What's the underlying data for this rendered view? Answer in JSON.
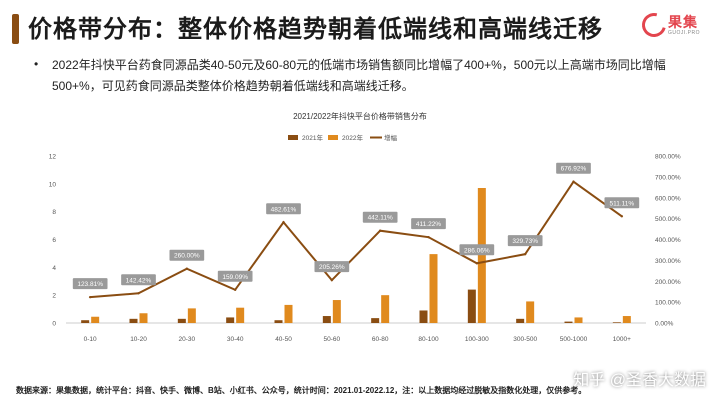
{
  "slide": {
    "title": "价格带分布：整体价格趋势朝着低端线和高端线迁移",
    "logo_text": "果集",
    "logo_sub": "GUOJI.PRO",
    "bullet_symbol": "•",
    "description": "2022年抖快平台药食同源品类40-50元及60-80元的低端市场销售额同比增幅了400+%，500元以上高端市场同比增幅500+%，可见药食同源品类整体价格趋势朝着低端线和高端线迁移。",
    "footer": "数据来源：果集数据，统计平台：抖音、快手、微博、B站、小红书、公众号，统计时间：2021.01-2022.12，注：以上数据均经过脱敏及指数化处理，仅供参考。",
    "watermark": "知乎 @圣香大数据"
  },
  "colors": {
    "title_accent": "#8a4d12",
    "series_2021": "#8a4d12",
    "series_2022": "#e08a1e",
    "growth_line": "#8a4d12",
    "label_box": "#9a9a9a"
  },
  "chart_data": {
    "type": "bar",
    "title": "2021/2022年抖快平台价格带销售分布",
    "categories": [
      "0-10",
      "10-20",
      "20-30",
      "30-40",
      "40-50",
      "50-60",
      "60-80",
      "80-100",
      "100-300",
      "300-500",
      "500-1000",
      "1000+"
    ],
    "series": [
      {
        "name": "2021年",
        "type": "bar",
        "axis": "left",
        "values": [
          0.2,
          0.3,
          0.3,
          0.4,
          0.2,
          0.5,
          0.35,
          0.9,
          2.4,
          0.3,
          0.1,
          0.05
        ]
      },
      {
        "name": "2022年",
        "type": "bar",
        "axis": "left",
        "values": [
          0.45,
          0.7,
          1.05,
          1.1,
          1.3,
          1.65,
          2.0,
          4.95,
          9.7,
          1.55,
          0.4,
          0.5
        ]
      },
      {
        "name": "增幅",
        "type": "line",
        "axis": "right",
        "values": [
          123.81,
          142.42,
          260.0,
          159.09,
          482.61,
          205.26,
          442.11,
          411.22,
          286.06,
          329.73,
          676.92,
          511.11
        ],
        "labels": [
          "123.81%",
          "142.42%",
          "260.00%",
          "159.09%",
          "482.61%",
          "205.26%",
          "442.11%",
          "411.22%",
          "286.06%",
          "329.73%",
          "676.92%",
          "511.11%"
        ]
      }
    ],
    "y_left": {
      "ylim": [
        0,
        12
      ],
      "ticks": [
        "0",
        "2",
        "4",
        "6",
        "8",
        "10",
        "12"
      ]
    },
    "y_right": {
      "ylim": [
        0,
        800
      ],
      "ticks": [
        "0.00%",
        "100.00%",
        "200.00%",
        "300.00%",
        "400.00%",
        "500.00%",
        "600.00%",
        "700.00%",
        "800.00%"
      ]
    },
    "grid": false,
    "legend_position": "top-center"
  }
}
